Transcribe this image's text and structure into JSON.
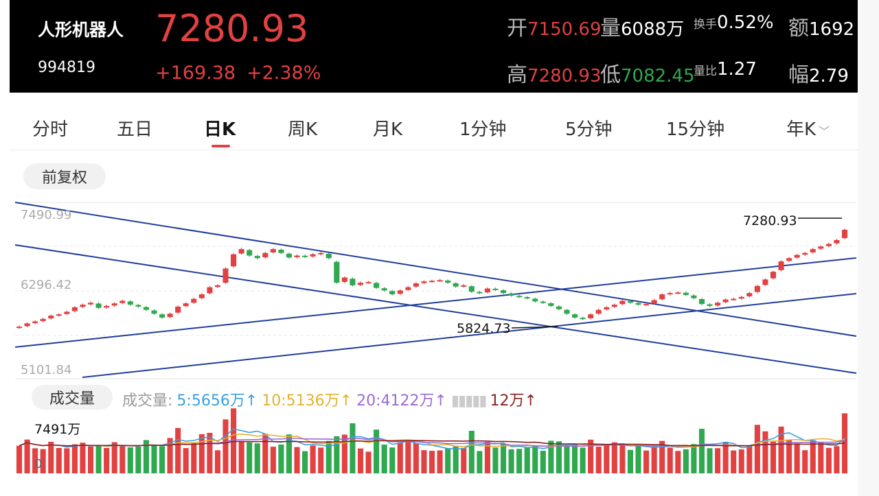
{
  "header": {
    "name": "人形机器人",
    "code": "994819",
    "price": "7280.93",
    "change": "+169.38",
    "change_pct": "+2.38%",
    "open_label": "开",
    "open": "7150.69",
    "volume_label": "量",
    "volume": "6088万",
    "turnover_label": "换手",
    "turnover": "0.52%",
    "amount_label": "额",
    "amount": "1692",
    "high_label": "高",
    "high": "7280.93",
    "low_label": "低",
    "low": "7082.45",
    "vol_ratio_label": "量比",
    "vol_ratio": "1.27",
    "amplitude_label": "幅",
    "amplitude": "2.79"
  },
  "tabs": [
    "分时",
    "五日",
    "日K",
    "周K",
    "月K",
    "1分钟",
    "5分钟",
    "15分钟",
    "年K"
  ],
  "active_tab": "日K",
  "adjust_label": "前复权",
  "chart": {
    "y_top": "7490.99",
    "y_mid": "6296.42",
    "y_bot": "5101.84",
    "high_mark": "7280.93",
    "low_mark": "5824.73"
  },
  "volume": {
    "label": "成交量",
    "ma_prefix": "成交量:",
    "ma5": "5:5656万↑",
    "ma10": "10:5136万↑",
    "ma20": "20:4122万↑",
    "ma_other": "12万↑",
    "max_label": "7491万",
    "zero_label": "0"
  },
  "colors": {
    "up": "#e24141",
    "down": "#2fa84f",
    "trend": "#1f3d9a",
    "ma5": "#3aa0e0",
    "ma10": "#e6b030",
    "ma20": "#9a6ad6",
    "ma_other": "#8b2020"
  },
  "chart_data": {
    "type": "candlestick",
    "close": [
      5780,
      5830,
      5860,
      5900,
      5950,
      5970,
      6010,
      6080,
      6120,
      6150,
      6070,
      6100,
      6140,
      6180,
      6120,
      6090,
      6040,
      5980,
      5920,
      5980,
      6090,
      6140,
      6210,
      6280,
      6390,
      6420,
      6680,
      6900,
      6980,
      6880,
      6840,
      6920,
      6980,
      6920,
      6850,
      6880,
      6860,
      6900,
      6920,
      6840,
      6460,
      6540,
      6420,
      6460,
      6470,
      6380,
      6340,
      6280,
      6340,
      6390,
      6450,
      6480,
      6490,
      6500,
      6460,
      6400,
      6420,
      6320,
      6300,
      6370,
      6350,
      6300,
      6260,
      6240,
      6220,
      6170,
      6150,
      6100,
      6050,
      5980,
      5920,
      5900,
      5970,
      6040,
      6080,
      6120,
      6180,
      6150,
      6120,
      6130,
      6190,
      6280,
      6300,
      6310,
      6270,
      6220,
      6130,
      6100,
      6150,
      6200,
      6210,
      6240,
      6300,
      6410,
      6510,
      6630,
      6790,
      6840,
      6890,
      6920,
      6980,
      7020,
      7060,
      7120,
      7280
    ]
  }
}
